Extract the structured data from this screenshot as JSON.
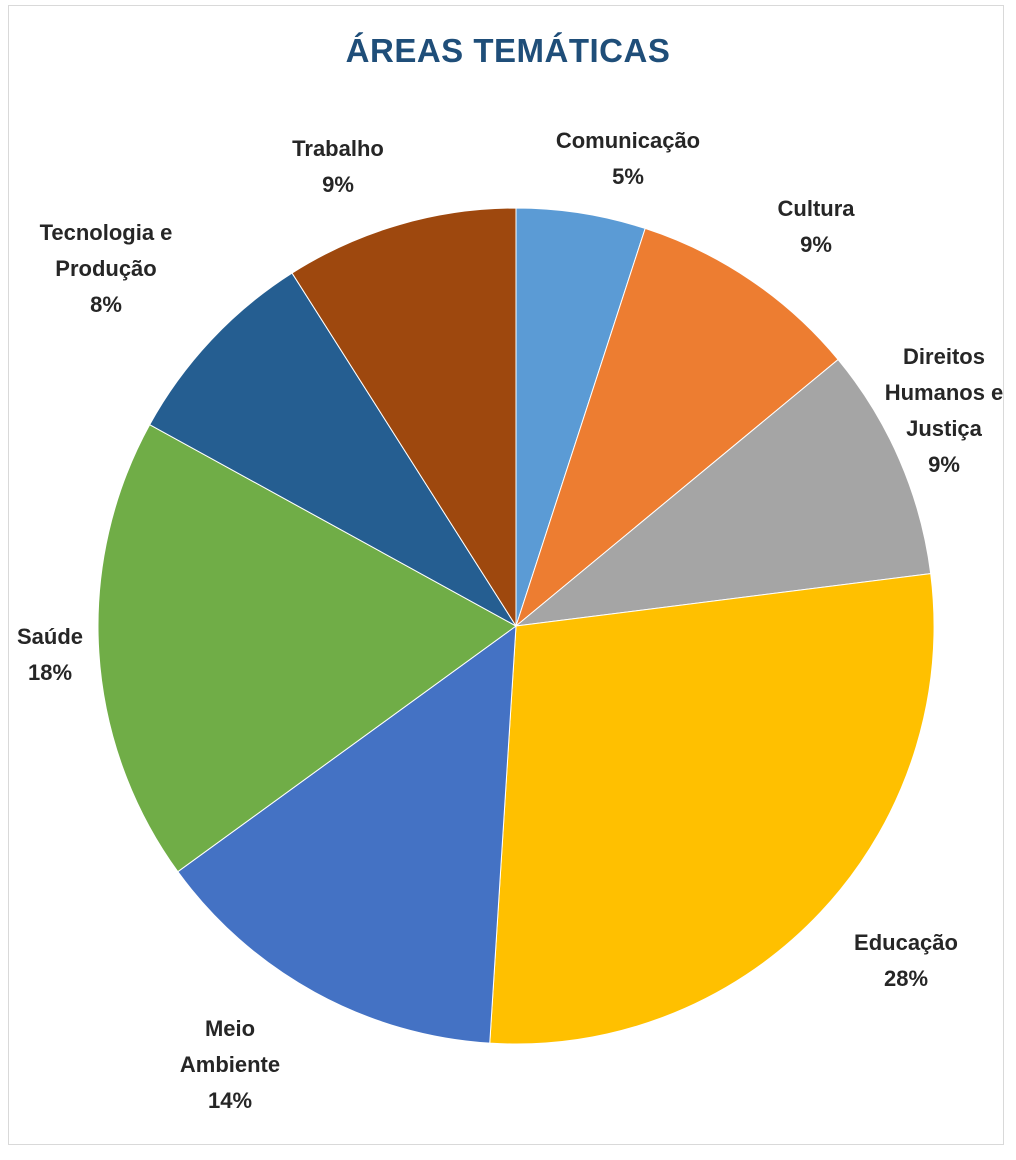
{
  "chart_data": {
    "type": "pie",
    "title": "ÁREAS TEMÁTICAS",
    "slices": [
      {
        "name": "Comunicação",
        "label_lines": [
          "Comunicação"
        ],
        "percent_label": "5%",
        "value": 5,
        "color": "#5b9bd5"
      },
      {
        "name": "Cultura",
        "label_lines": [
          "Cultura"
        ],
        "percent_label": "9%",
        "value": 9,
        "color": "#ed7d31"
      },
      {
        "name": "Direitos Humanos e Justiça",
        "label_lines": [
          "Direitos",
          "Humanos e",
          "Justiça"
        ],
        "percent_label": "9%",
        "value": 9,
        "color": "#a5a5a5"
      },
      {
        "name": "Educação",
        "label_lines": [
          "Educação"
        ],
        "percent_label": "28%",
        "value": 28,
        "color": "#ffc000"
      },
      {
        "name": "Meio Ambiente",
        "label_lines": [
          "Meio",
          "Ambiente"
        ],
        "percent_label": "14%",
        "value": 14,
        "color": "#4472c4"
      },
      {
        "name": "Saúde",
        "label_lines": [
          "Saúde"
        ],
        "percent_label": "18%",
        "value": 18,
        "color": "#70ad47"
      },
      {
        "name": "Tecnologia e Produção",
        "label_lines": [
          "Tecnologia e",
          "Produção"
        ],
        "percent_label": "8%",
        "value": 8,
        "color": "#255e91"
      },
      {
        "name": "Trabalho",
        "label_lines": [
          "Trabalho"
        ],
        "percent_label": "9%",
        "value": 9,
        "color": "#9e480e"
      }
    ],
    "legend": "none",
    "labels": "outside"
  }
}
